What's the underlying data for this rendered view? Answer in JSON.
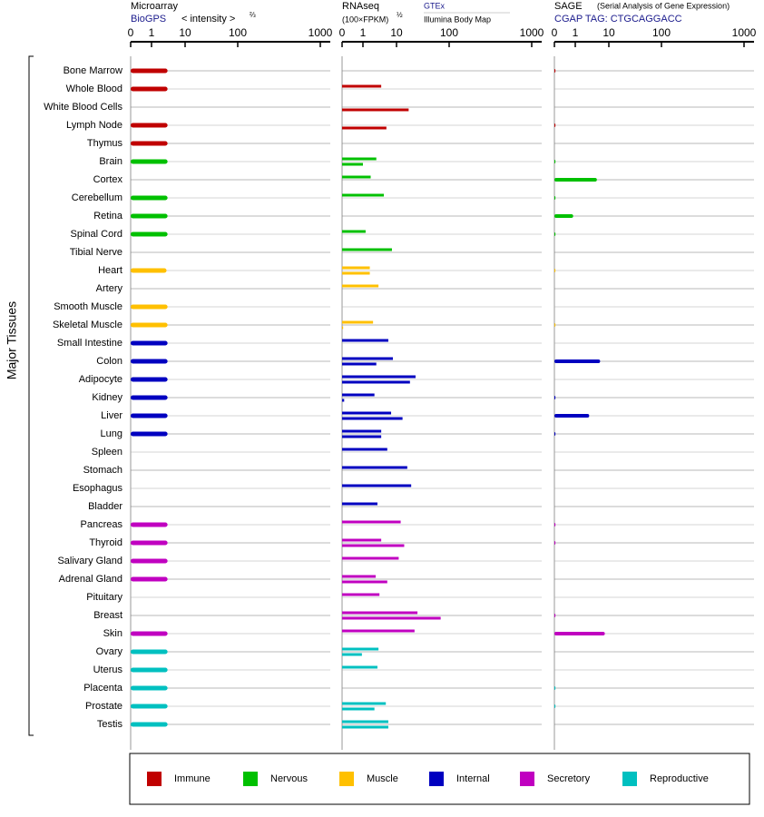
{
  "chart_data": {
    "type": "bar",
    "y_label": "Major Tissues",
    "groups": [
      {
        "name": "Immune",
        "color": "#c00000",
        "tissues": [
          "Bone Marrow",
          "Whole Blood",
          "White Blood Cells",
          "Lymph Node",
          "Thymus"
        ]
      },
      {
        "name": "Nervous",
        "color": "#00c000",
        "tissues": [
          "Brain",
          "Cortex",
          "Cerebellum",
          "Retina",
          "Spinal Cord",
          "Tibial Nerve"
        ]
      },
      {
        "name": "Muscle",
        "color": "#ffc000",
        "tissues": [
          "Heart",
          "Artery",
          "Smooth Muscle",
          "Skeletal Muscle"
        ]
      },
      {
        "name": "Internal",
        "color": "#0000c0",
        "tissues": [
          "Small Intestine",
          "Colon",
          "Adipocyte",
          "Kidney",
          "Liver",
          "Lung",
          "Spleen",
          "Stomach",
          "Esophagus",
          "Bladder"
        ]
      },
      {
        "name": "Secretory",
        "color": "#c000c0",
        "tissues": [
          "Pancreas",
          "Thyroid",
          "Salivary Gland",
          "Adrenal Gland",
          "Pituitary",
          "Breast",
          "Skin"
        ]
      },
      {
        "name": "Reproductive",
        "color": "#00c0c0",
        "tissues": [
          "Ovary",
          "Uterus",
          "Placenta",
          "Prostate",
          "Testis"
        ]
      }
    ],
    "panels": [
      {
        "title": "Microarray",
        "source": "BioGPS",
        "axis_note": "< intensity >",
        "axis_power": "⅔",
        "xlim": [
          0,
          1000
        ],
        "xticks": [
          0,
          1,
          10,
          100,
          1000
        ],
        "series": [
          {
            "values": [
              [
                3,
                3,
                null,
                3,
                3
              ],
              [
                3,
                null,
                3,
                3,
                3,
                null
              ],
              [
                2.8,
                null,
                3,
                3
              ],
              [
                3,
                3,
                3,
                3,
                3,
                3,
                null,
                null,
                null,
                null
              ],
              [
                3,
                3,
                3,
                3,
                null,
                null,
                3
              ],
              [
                3,
                3,
                3,
                3,
                3
              ]
            ]
          }
        ]
      },
      {
        "title": "RNAseq",
        "axis_note": "(100×FPKM)",
        "axis_power": "½",
        "xlim": [
          0,
          1000
        ],
        "xticks": [
          0,
          1,
          10,
          100,
          1000
        ],
        "series": [
          {
            "name": "GTEx",
            "values": [
              [
                null,
                3.5,
                null,
                null,
                null
              ],
              [
                2.5,
                1.7,
                4.2,
                null,
                1.2,
                7.3
              ],
              [
                1.6,
                2.9,
                null,
                2
              ],
              [
                5.7,
                7.8,
                23,
                2.2,
                6.9,
                3.5,
                5.3,
                16,
                19,
                2.7
              ],
              [
                12,
                3.5,
                11,
                2.4,
                3.1,
                25,
                22
              ],
              [
                2.9,
                2.7,
                null,
                4.8,
                5.7
              ]
            ]
          },
          {
            "name": "Illumina Body Map",
            "values": [
              [
                null,
                null,
                17,
                5,
                null
              ],
              [
                1,
                null,
                null,
                null,
                null,
                null
              ],
              [
                1.6,
                null,
                null,
                0.05
              ],
              [
                null,
                2.5,
                18,
                0.1,
                13,
                3.5,
                null,
                null,
                null,
                null
              ],
              [
                null,
                14,
                null,
                5.3,
                null,
                69,
                null
              ],
              [
                0.95,
                null,
                null,
                2.2,
                5.7
              ]
            ]
          }
        ]
      },
      {
        "title": "SAGE",
        "subtitle": "(Serial Analysis of Gene Expression)",
        "source": "CGAP TAG: CTGCAGGACC",
        "xlim": [
          0,
          1000
        ],
        "xticks": [
          0,
          1,
          10,
          100,
          1000
        ],
        "series": [
          {
            "values": [
              [
                0.05,
                null,
                null,
                0.05,
                null
              ],
              [
                0.05,
                4.4,
                0.05,
                0.9,
                0.05,
                null
              ],
              [
                0.05,
                null,
                null,
                0.05
              ],
              [
                null,
                5.5,
                null,
                0.05,
                2.6,
                0.05,
                null,
                null,
                null,
                null
              ],
              [
                0.05,
                0.05,
                null,
                null,
                null,
                0.05,
                7.6
              ],
              [
                null,
                null,
                0.05,
                0.05,
                null
              ]
            ]
          }
        ]
      }
    ]
  }
}
